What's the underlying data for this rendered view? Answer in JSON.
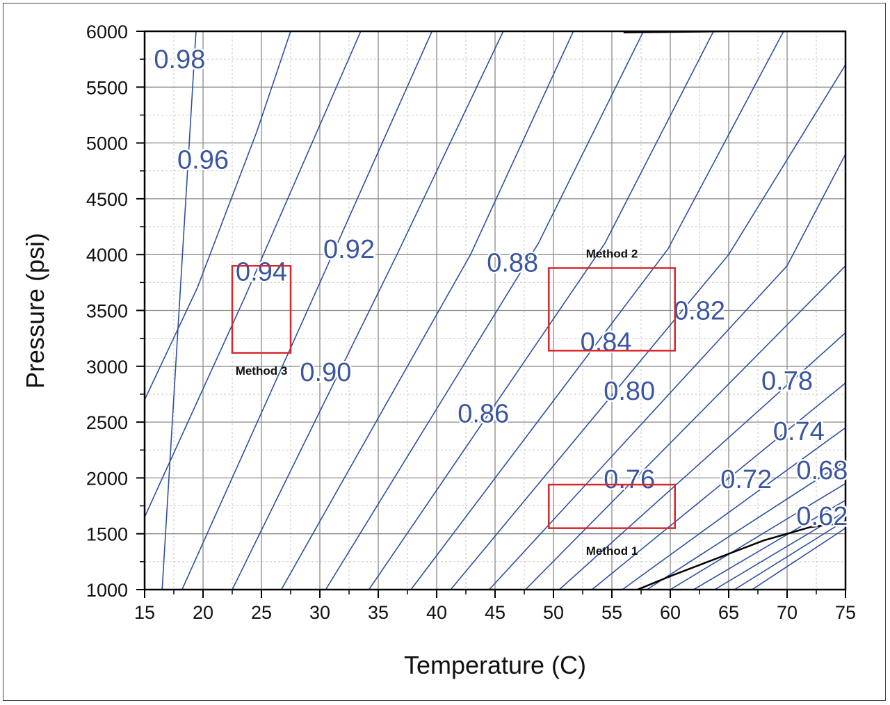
{
  "chart_data": {
    "type": "line",
    "title": "",
    "xlabel": "Temperature (C)",
    "ylabel": "Pressure (psi)",
    "xlim": [
      15,
      75
    ],
    "ylim": [
      1000,
      6000
    ],
    "xticks": [
      15,
      20,
      25,
      30,
      35,
      40,
      45,
      50,
      55,
      60,
      65,
      70,
      75
    ],
    "yticks": [
      1000,
      1500,
      2000,
      2500,
      3000,
      3500,
      4000,
      4500,
      5000,
      5500,
      6000
    ],
    "xtick_labels": [
      "15",
      "20",
      "25",
      "30",
      "35",
      "40",
      "45",
      "50",
      "55",
      "60",
      "65",
      "70",
      "75"
    ],
    "ytick_labels": [
      "1000",
      "1500",
      "2000",
      "2500",
      "3000",
      "3500",
      "4000",
      "4500",
      "5000",
      "5500",
      "6000"
    ],
    "grid": true,
    "colors": {
      "contour": "#2e4fa3",
      "label": "#3a56a0",
      "boundary": "#000000",
      "method_box": "#d9262c"
    },
    "contour_lines": [
      {
        "series": [
          [
            16.5,
            1000
          ],
          [
            19.4,
            6000
          ]
        ]
      },
      {
        "series": [
          [
            15,
            2700
          ],
          [
            19.5,
            3700
          ],
          [
            24.6,
            5100
          ],
          [
            27.5,
            6000
          ]
        ]
      },
      {
        "series": [
          [
            15,
            1650
          ],
          [
            23.5,
            3600
          ],
          [
            33.5,
            6000
          ]
        ]
      },
      {
        "series": [
          [
            18.2,
            1000
          ],
          [
            29.8,
            3700
          ],
          [
            39.6,
            6000
          ]
        ]
      },
      {
        "series": [
          [
            22.5,
            1000
          ],
          [
            36.6,
            4000
          ],
          [
            45.7,
            6000
          ]
        ]
      },
      {
        "series": [
          [
            26.7,
            1000
          ],
          [
            42.9,
            4000
          ],
          [
            51.7,
            6000
          ]
        ]
      },
      {
        "series": [
          [
            30.5,
            1000
          ],
          [
            48.7,
            4100
          ],
          [
            57.7,
            6000
          ]
        ]
      },
      {
        "series": [
          [
            34.2,
            1000
          ],
          [
            54.4,
            4100
          ],
          [
            63.7,
            6000
          ]
        ]
      },
      {
        "series": [
          [
            37.8,
            1000
          ],
          [
            59.8,
            4050
          ],
          [
            69.7,
            6000
          ]
        ]
      },
      {
        "series": [
          [
            41.2,
            1000
          ],
          [
            65,
            4000
          ],
          [
            75,
            5700
          ]
        ]
      },
      {
        "series": [
          [
            44.5,
            1000
          ],
          [
            70,
            3900
          ],
          [
            75,
            4900
          ]
        ]
      },
      {
        "series": [
          [
            47.6,
            1000
          ],
          [
            75,
            3900
          ]
        ]
      },
      {
        "series": [
          [
            50.5,
            1000
          ],
          [
            75,
            3300
          ]
        ]
      },
      {
        "series": [
          [
            53.3,
            1000
          ],
          [
            75,
            2850
          ]
        ]
      },
      {
        "series": [
          [
            55.9,
            1000
          ],
          [
            75,
            2450
          ]
        ]
      },
      {
        "series": [
          [
            58,
            1000
          ],
          [
            75,
            2150
          ]
        ]
      },
      {
        "series": [
          [
            60,
            1000
          ],
          [
            75,
            1950
          ]
        ]
      },
      {
        "series": [
          [
            62,
            1000
          ],
          [
            75,
            1800
          ]
        ]
      },
      {
        "series": [
          [
            63.8,
            1000
          ],
          [
            75,
            1700
          ]
        ]
      },
      {
        "series": [
          [
            65.5,
            1000
          ],
          [
            75,
            1620
          ]
        ]
      },
      {
        "series": [
          [
            67,
            1000
          ],
          [
            75,
            1550
          ]
        ]
      }
    ],
    "boundary_curves": [
      {
        "series": [
          [
            57.2,
            1000
          ],
          [
            60,
            1120
          ],
          [
            64,
            1280
          ],
          [
            68,
            1440
          ],
          [
            72,
            1560
          ],
          [
            75,
            1600
          ]
        ]
      },
      {
        "series": [
          [
            56,
            5990
          ],
          [
            65,
            6000
          ],
          [
            75,
            6000
          ]
        ]
      }
    ],
    "contour_labels": [
      {
        "text": "0.98",
        "x": 18.0,
        "y": 5750
      },
      {
        "text": "0.96",
        "x": 20.0,
        "y": 4850
      },
      {
        "text": "0.94",
        "x": 25.0,
        "y": 3850
      },
      {
        "text": "0.92",
        "x": 32.5,
        "y": 4050
      },
      {
        "text": "0.90",
        "x": 30.5,
        "y": 2950
      },
      {
        "text": "0.88",
        "x": 46.5,
        "y": 3930
      },
      {
        "text": "0.86",
        "x": 44.0,
        "y": 2580
      },
      {
        "text": "0.84",
        "x": 54.5,
        "y": 3220
      },
      {
        "text": "0.82",
        "x": 62.5,
        "y": 3500
      },
      {
        "text": "0.80",
        "x": 56.5,
        "y": 2780
      },
      {
        "text": "0.78",
        "x": 70.0,
        "y": 2870
      },
      {
        "text": "0.76",
        "x": 56.5,
        "y": 1990
      },
      {
        "text": "0.74",
        "x": 71.0,
        "y": 2420
      },
      {
        "text": "0.72",
        "x": 66.5,
        "y": 1990
      },
      {
        "text": "0.68",
        "x": 73.0,
        "y": 2070
      },
      {
        "text": "0.62",
        "x": 73.0,
        "y": 1660
      }
    ],
    "method_regions": [
      {
        "label": "Method 3",
        "x0": 22.5,
        "x1": 27.5,
        "y0": 3120,
        "y1": 3900,
        "label_x": 25.0,
        "label_y": 2960
      },
      {
        "label": "Method 2",
        "x0": 49.6,
        "x1": 60.4,
        "y0": 3140,
        "y1": 3880,
        "label_x": 55.0,
        "label_y": 4010
      },
      {
        "label": "Method 1",
        "x0": 49.6,
        "x1": 60.4,
        "y0": 1550,
        "y1": 1940,
        "label_x": 55.0,
        "label_y": 1350
      }
    ]
  }
}
